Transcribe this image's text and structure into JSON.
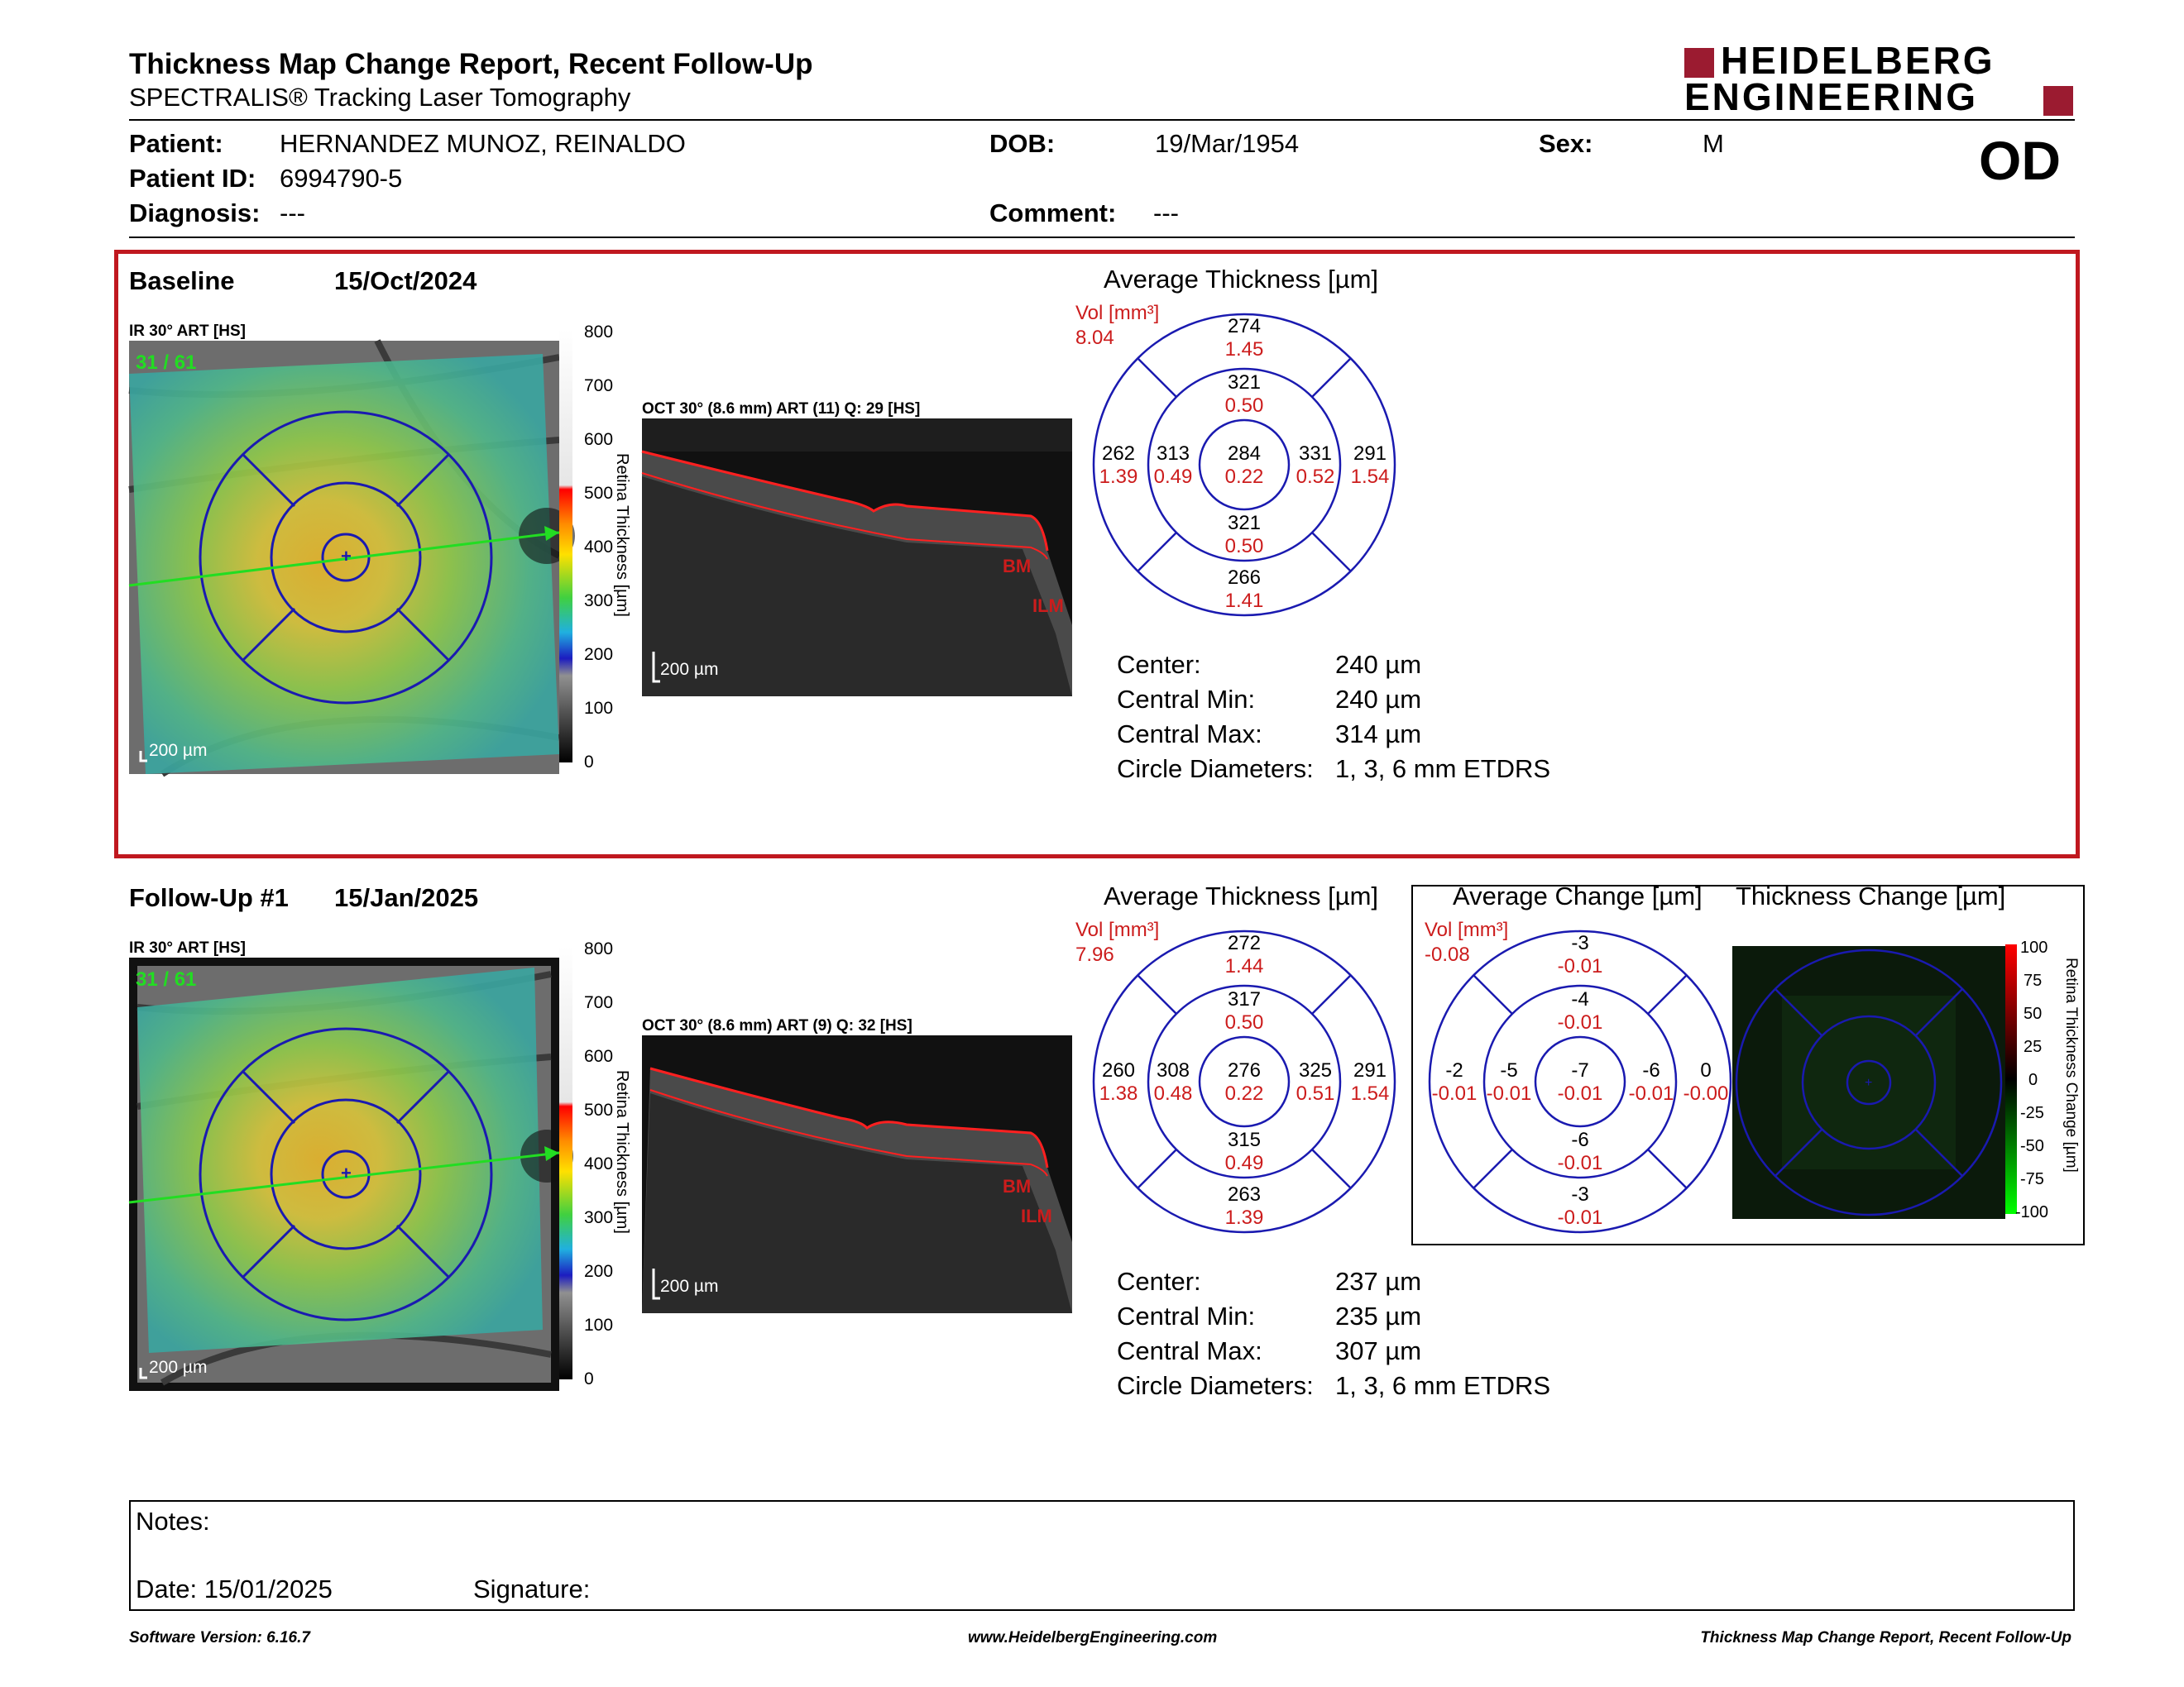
{
  "header": {
    "title": "Thickness Map Change Report, Recent Follow-Up",
    "subtitle": "SPECTRALIS® Tracking Laser Tomography",
    "logo_line1": "HEIDELBERG",
    "logo_line2": "ENGINEERING",
    "eye": "OD"
  },
  "patient": {
    "patient_label": "Patient:",
    "patient_value": "HERNANDEZ MUNOZ, REINALDO",
    "dob_label": "DOB:",
    "dob_value": "19/Mar/1954",
    "sex_label": "Sex:",
    "sex_value": "M",
    "id_label": "Patient ID:",
    "id_value": "6994790-5",
    "diagnosis_label": "Diagnosis:",
    "diagnosis_value": "---",
    "comment_label": "Comment:",
    "comment_value": "---"
  },
  "baseline": {
    "label": "Baseline",
    "date": "15/Oct/2024",
    "ir_label": "IR 30° ART [HS]",
    "ir_counter": "31 / 61",
    "scale_bar": "200 µm",
    "oct_label": "OCT 30° (8.6 mm) ART (11) Q: 29 [HS]",
    "oct_scale": "200 µm",
    "bm": "BM",
    "ilm": "ILM",
    "colorbar_ticks": [
      "800",
      "700",
      "600",
      "500",
      "400",
      "300",
      "200",
      "100",
      "0"
    ],
    "colorbar_title": "Retina Thickness [µm]",
    "avg_title": "Average Thickness [µm]",
    "vol_label": "Vol [mm³]",
    "vol_value": "8.04",
    "etdrs": {
      "c": [
        "284",
        "0.22"
      ],
      "in_s": [
        "321",
        "0.50"
      ],
      "in_t": [
        "313",
        "0.49"
      ],
      "in_n": [
        "331",
        "0.52"
      ],
      "in_i": [
        "321",
        "0.50"
      ],
      "out_s": [
        "274",
        "1.45"
      ],
      "out_t": [
        "262",
        "1.39"
      ],
      "out_n": [
        "291",
        "1.54"
      ],
      "out_i": [
        "266",
        "1.41"
      ]
    },
    "metrics": [
      {
        "label": "Center:",
        "value": "240 µm"
      },
      {
        "label": "Central Min:",
        "value": "240 µm"
      },
      {
        "label": "Central Max:",
        "value": "314 µm"
      },
      {
        "label": "Circle Diameters:",
        "value": "1, 3, 6 mm ETDRS"
      }
    ]
  },
  "followup": {
    "label": "Follow-Up #1",
    "date": "15/Jan/2025",
    "ir_label": "IR 30° ART [HS]",
    "ir_counter": "31 / 61",
    "scale_bar": "200 µm",
    "oct_label": "OCT 30° (8.6 mm) ART (9) Q: 32 [HS]",
    "oct_scale": "200 µm",
    "bm": "BM",
    "ilm": "ILM",
    "colorbar_ticks": [
      "800",
      "700",
      "600",
      "500",
      "400",
      "300",
      "200",
      "100",
      "0"
    ],
    "colorbar_title": "Retina Thickness [µm]",
    "avg_title": "Average Thickness [µm]",
    "vol_label": "Vol [mm³]",
    "vol_value": "7.96",
    "etdrs": {
      "c": [
        "276",
        "0.22"
      ],
      "in_s": [
        "317",
        "0.50"
      ],
      "in_t": [
        "308",
        "0.48"
      ],
      "in_n": [
        "325",
        "0.51"
      ],
      "in_i": [
        "315",
        "0.49"
      ],
      "out_s": [
        "272",
        "1.44"
      ],
      "out_t": [
        "260",
        "1.38"
      ],
      "out_n": [
        "291",
        "1.54"
      ],
      "out_i": [
        "263",
        "1.39"
      ]
    },
    "change_title": "Average Change [µm]",
    "change_vol_label": "Vol [mm³]",
    "change_vol_value": "-0.08",
    "change": {
      "c": [
        "-7",
        "-0.01"
      ],
      "in_s": [
        "-4",
        "-0.01"
      ],
      "in_t": [
        "-5",
        "-0.01"
      ],
      "in_n": [
        "-6",
        "-0.01"
      ],
      "in_i": [
        "-6",
        "-0.01"
      ],
      "out_s": [
        "-3",
        "-0.01"
      ],
      "out_t": [
        "-2",
        "-0.01"
      ],
      "out_n": [
        "0",
        "-0.00"
      ],
      "out_i": [
        "-3",
        "-0.01"
      ]
    },
    "thickness_change_title": "Thickness Change [µm]",
    "change_colorbar_ticks": [
      "100",
      "75",
      "50",
      "25",
      "0",
      "-25",
      "-50",
      "-75",
      "-100"
    ],
    "change_colorbar_title": "Retina Thickness Change [µm]",
    "metrics": [
      {
        "label": "Center:",
        "value": "237 µm"
      },
      {
        "label": "Central Min:",
        "value": "235 µm"
      },
      {
        "label": "Central Max:",
        "value": "307 µm"
      },
      {
        "label": "Circle Diameters:",
        "value": "1, 3, 6 mm ETDRS"
      }
    ]
  },
  "notes": {
    "notes_label": "Notes:",
    "date_label": "Date: 15/01/2025",
    "signature_label": "Signature:"
  },
  "footer": {
    "software": "Software Version: 6.16.7",
    "website": "www.HeidelbergEngineering.com",
    "report": "Thickness Map Change Report, Recent Follow-Up"
  },
  "colors": {
    "brand_red": "#9b1b30",
    "baseline_border": "#c0181f",
    "etdrs_blue": "#1a1ab0",
    "vol_red": "#cc1c1c",
    "scan_green": "#22dd22"
  }
}
